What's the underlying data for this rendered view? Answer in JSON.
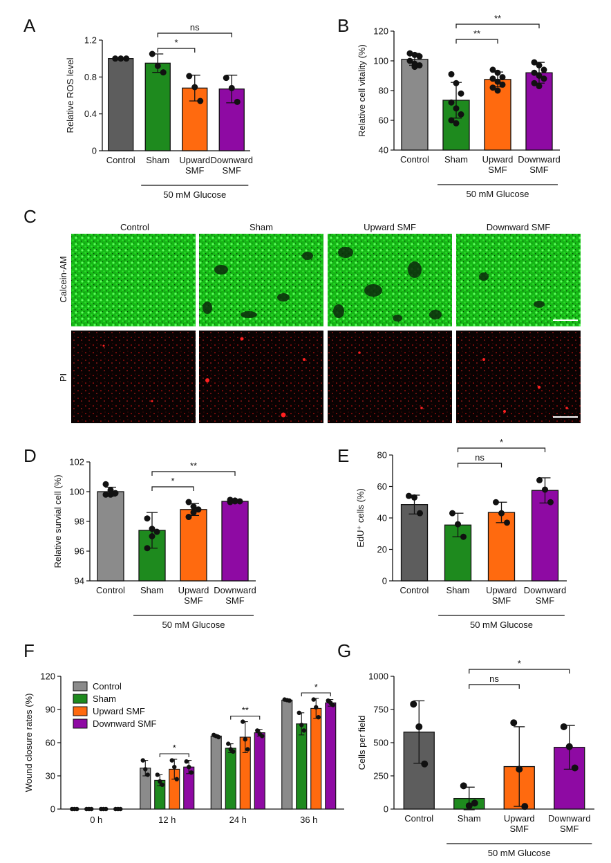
{
  "panel_letters": {
    "A": "A",
    "B": "B",
    "C": "C",
    "D": "D",
    "E": "E",
    "F": "F",
    "G": "G"
  },
  "colors": {
    "control": "#5d5d5d",
    "control_light": "#8b8b8b",
    "sham": "#1e8a1e",
    "upward": "#ff6a0f",
    "downward": "#8e0aa3",
    "calcein": "#18c518",
    "pi": "#e01010"
  },
  "microscopy": {
    "columns": [
      "Control",
      "Sham",
      "Upward SMF",
      "Downward SMF"
    ],
    "rows": [
      "Calcein-AM",
      "PI"
    ]
  },
  "chart_data": [
    {
      "id": "A",
      "type": "bar",
      "categories": [
        "Control",
        "Sham",
        "Upward\nSMF",
        "Downward\nSMF"
      ],
      "values": [
        1.0,
        0.95,
        0.68,
        0.67
      ],
      "errors": [
        0.0,
        0.1,
        0.14,
        0.15
      ],
      "points": [
        [
          1.0,
          1.0,
          1.0
        ],
        [
          1.05,
          0.92,
          0.85
        ],
        [
          0.81,
          0.69,
          0.54
        ],
        [
          0.79,
          0.68,
          0.53
        ]
      ],
      "ylabel": "Relative ROS level",
      "ylim": [
        0,
        1.2
      ],
      "yticks": [
        0,
        0.4,
        0.8,
        1.2
      ],
      "ytick_labels": [
        "0",
        "0.4",
        "0.8",
        "1.2"
      ],
      "group_label": "50 mM Glucose",
      "significance": [
        {
          "from": 1,
          "to": 2,
          "label": "*"
        },
        {
          "from": 1,
          "to": 3,
          "label": "ns"
        }
      ]
    },
    {
      "id": "B",
      "type": "bar",
      "categories": [
        "Control",
        "Sham",
        "Upward\nSMF",
        "Downward\nSMF"
      ],
      "values": [
        101,
        73.5,
        87.5,
        92
      ],
      "errors": [
        4,
        12,
        5,
        7
      ],
      "points": [
        [
          105,
          104,
          103,
          100,
          98,
          97,
          105,
          96
        ],
        [
          91,
          85,
          78,
          72,
          68,
          64,
          60,
          58
        ],
        [
          94,
          92,
          89,
          88,
          86,
          84,
          82,
          80
        ],
        [
          99,
          97,
          94,
          92,
          90,
          88,
          85,
          83
        ]
      ],
      "ylabel": "Relative cell vitality (%)",
      "ylim": [
        40,
        120
      ],
      "yticks": [
        40,
        60,
        80,
        100,
        120
      ],
      "ytick_labels": [
        "40",
        "60",
        "80",
        "100",
        "120"
      ],
      "group_label": "50 mM Glucose",
      "significance": [
        {
          "from": 1,
          "to": 2,
          "label": "**"
        },
        {
          "from": 1,
          "to": 3,
          "label": "**"
        }
      ]
    },
    {
      "id": "D",
      "type": "bar",
      "categories": [
        "Control",
        "Sham",
        "Upward\nSMF",
        "Downward\nSMF"
      ],
      "values": [
        100.0,
        97.4,
        98.8,
        99.35
      ],
      "errors": [
        0.3,
        1.2,
        0.4,
        0.05
      ],
      "points": [
        [
          100.5,
          100.1,
          99.9,
          99.8,
          99.8
        ],
        [
          98.2,
          97.5,
          97.3,
          96.2,
          97.0
        ],
        [
          99.3,
          99.0,
          98.8,
          98.3,
          98.6
        ],
        [
          99.45,
          99.4,
          99.35,
          99.3,
          99.35
        ]
      ],
      "ylabel": "Relative survial cell (%)",
      "ylim": [
        94,
        102
      ],
      "yticks": [
        94,
        96,
        98,
        100,
        102
      ],
      "ytick_labels": [
        "94",
        "96",
        "98",
        "100",
        "102"
      ],
      "group_label": "50 mM Glucose",
      "significance": [
        {
          "from": 1,
          "to": 2,
          "label": "*"
        },
        {
          "from": 1,
          "to": 3,
          "label": "**"
        }
      ]
    },
    {
      "id": "E",
      "type": "bar",
      "categories": [
        "Control",
        "Sham",
        "Upward\nSMF",
        "Downward\nSMF"
      ],
      "values": [
        48.5,
        35.5,
        43.5,
        57.5
      ],
      "errors": [
        6,
        7.5,
        6.5,
        8
      ],
      "points": [
        [
          54,
          53,
          43
        ],
        [
          43,
          36,
          28
        ],
        [
          50,
          43,
          37
        ],
        [
          64,
          58,
          50
        ]
      ],
      "ylabel": "EdU⁺ cells (%)",
      "ylim": [
        0,
        80
      ],
      "yticks": [
        0,
        20,
        40,
        60,
        80
      ],
      "ytick_labels": [
        "0",
        "20",
        "40",
        "60",
        "80"
      ],
      "group_label": "50 mM Glucose",
      "significance": [
        {
          "from": 1,
          "to": 2,
          "label": "ns"
        },
        {
          "from": 1,
          "to": 3,
          "label": "*"
        }
      ]
    },
    {
      "id": "F",
      "type": "bar",
      "x": [
        "0 h",
        "12 h",
        "24 h",
        "36 h"
      ],
      "series": [
        {
          "name": "Control",
          "values": [
            0,
            37,
            66,
            98.5
          ],
          "errors": [
            0,
            7,
            1,
            1
          ],
          "points": [
            [
              0,
              0,
              0
            ],
            [
              44,
              36,
              31
            ],
            [
              67,
              66,
              65
            ],
            [
              99,
              98.5,
              98
            ]
          ]
        },
        {
          "name": "Sham",
          "values": [
            0,
            26,
            55,
            77
          ],
          "errors": [
            0,
            5,
            4,
            10
          ],
          "points": [
            [
              0,
              0,
              0
            ],
            [
              31,
              25,
              22
            ],
            [
              59,
              54,
              52
            ],
            [
              87,
              76,
              71
            ]
          ]
        },
        {
          "name": "Upward SMF",
          "values": [
            0,
            36,
            65,
            91
          ],
          "errors": [
            0,
            9,
            14,
            9
          ],
          "points": [
            [
              0,
              0,
              0
            ],
            [
              44,
              38,
              27
            ],
            [
              79,
              63,
              54
            ],
            [
              99,
              92,
              83
            ]
          ]
        },
        {
          "name": "Downward SMF",
          "values": [
            0,
            38,
            69,
            96
          ],
          "errors": [
            0,
            6,
            3,
            3
          ],
          "points": [
            [
              0,
              0,
              0
            ],
            [
              43,
              38,
              33
            ],
            [
              71,
              68,
              66
            ],
            [
              98,
              96,
              94
            ]
          ]
        }
      ],
      "ylabel": "Wound closure rates (%)",
      "ylim": [
        0,
        120
      ],
      "yticks": [
        0,
        30,
        60,
        90,
        120
      ],
      "ytick_labels": [
        "0",
        "30",
        "60",
        "90",
        "120"
      ],
      "legend_position": "top-left",
      "significance": [
        {
          "group": 1,
          "label": "*"
        },
        {
          "group": 2,
          "label": "**"
        },
        {
          "group": 3,
          "label": "*"
        }
      ]
    },
    {
      "id": "G",
      "type": "bar",
      "categories": [
        "Control",
        "Sham",
        "Upward\nSMF",
        "Downward\nSMF"
      ],
      "values": [
        580,
        80,
        320,
        465
      ],
      "errors": [
        235,
        85,
        300,
        165
      ],
      "points": [
        [
          790,
          620,
          340
        ],
        [
          175,
          25,
          45
        ],
        [
          650,
          300,
          20
        ],
        [
          620,
          470,
          310
        ]
      ],
      "ylabel": "Cells per field",
      "ylim": [
        0,
        1000
      ],
      "yticks": [
        0,
        250,
        500,
        750,
        1000
      ],
      "ytick_labels": [
        "0",
        "250",
        "500",
        "750",
        "1000"
      ],
      "group_label": "50 mM Glucose",
      "significance": [
        {
          "from": 1,
          "to": 2,
          "label": "ns"
        },
        {
          "from": 1,
          "to": 3,
          "label": "*"
        }
      ]
    }
  ]
}
